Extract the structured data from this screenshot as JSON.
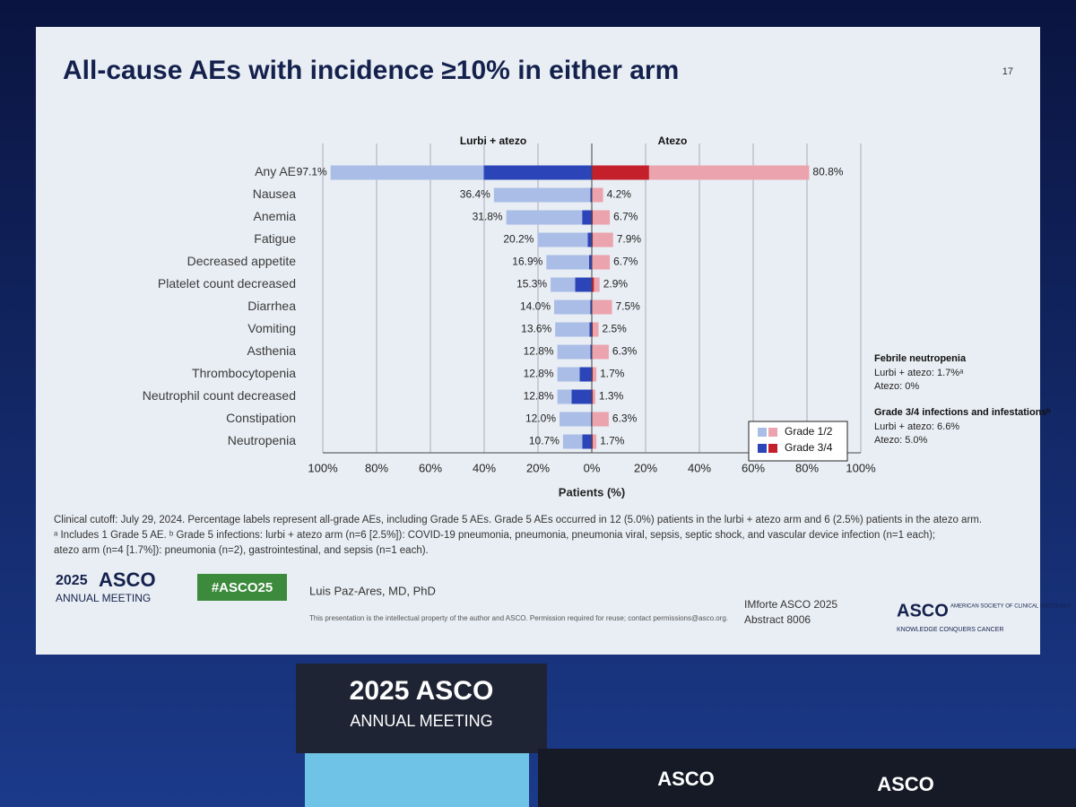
{
  "chart_data": {
    "type": "butterfly",
    "title": "All-cause AEs with incidence ≥10% in either arm",
    "slide_number": "17",
    "x_label": "Patients (%)",
    "categories": [
      "Any AE",
      "Nausea",
      "Anemia",
      "Fatigue",
      "Decreased appetite",
      "Platelet count decreased",
      "Diarrhea",
      "Vomiting",
      "Asthenia",
      "Thrombocytopenia",
      "Neutrophil count decreased",
      "Constipation",
      "Neutropenia"
    ],
    "series": [
      {
        "name": "Grade 1/2",
        "colors": [
          "#a9bde6",
          "#eba3ad"
        ]
      },
      {
        "name": "Grade 3/4",
        "colors": [
          "#2b45b8",
          "#c4202c"
        ]
      }
    ],
    "groups": [
      {
        "name": "Lurbi + atezo",
        "side": "left",
        "values": [
          [
            56.9,
            35.9,
            28.2,
            18.7,
            15.9,
            9.1,
            13.4,
            12.7,
            12.3,
            8.3,
            5.3,
            11.7,
            7.2
          ],
          [
            40.2,
            0.5,
            3.6,
            1.5,
            1.0,
            6.2,
            0.6,
            0.9,
            0.5,
            4.5,
            7.5,
            0.3,
            3.5
          ]
        ],
        "totals": [
          97.1,
          36.4,
          31.8,
          20.2,
          16.9,
          15.3,
          14.0,
          13.6,
          12.8,
          12.8,
          12.8,
          12.0,
          10.7
        ],
        "total_labels": [
          "97.1%",
          "36.4%",
          "31.8%",
          "20.2%",
          "16.9%",
          "15.3%",
          "14.0%",
          "13.6%",
          "12.8%",
          "12.8%",
          "12.8%",
          "12.0%",
          "10.7%"
        ],
        "xticks": [
          {
            "value": 100,
            "label": "100%"
          },
          {
            "value": 80,
            "label": "80%"
          },
          {
            "value": 60,
            "label": "60%"
          },
          {
            "value": 40,
            "label": "40%"
          },
          {
            "value": 20,
            "label": "20%"
          }
        ]
      },
      {
        "name": "Atezo",
        "side": "right",
        "values": [
          [
            59.5,
            4.2,
            6.3,
            7.5,
            6.7,
            2.1,
            7.5,
            2.1,
            6.3,
            1.3,
            0.9,
            6.3,
            1.3
          ],
          [
            21.3,
            0,
            0.4,
            0.4,
            0,
            0.8,
            0,
            0.4,
            0,
            0.4,
            0.4,
            0,
            0.4
          ]
        ],
        "totals": [
          80.8,
          4.2,
          6.7,
          7.9,
          6.7,
          2.9,
          7.5,
          2.5,
          6.3,
          1.7,
          1.3,
          6.3,
          1.7
        ],
        "total_labels": [
          "80.8%",
          "4.2%",
          "6.7%",
          "7.9%",
          "6.7%",
          "2.9%",
          "7.5%",
          "2.5%",
          "6.3%",
          "1.7%",
          "1.3%",
          "6.3%",
          "1.7%"
        ],
        "xticks": [
          {
            "value": 0,
            "label": "0%"
          },
          {
            "value": 20,
            "label": "20%"
          },
          {
            "value": 40,
            "label": "40%"
          },
          {
            "value": 60,
            "label": "60%"
          },
          {
            "value": 80,
            "label": "80%"
          },
          {
            "value": 100,
            "label": "100%"
          }
        ]
      }
    ],
    "xlim": [
      0,
      100
    ],
    "grid": true,
    "legend": "bottom-right",
    "notes": [
      {
        "heading": "Febrile neutropenia",
        "lines": [
          "Lurbi + atezo: 1.7%ᵃ",
          "Atezo: 0%"
        ]
      },
      {
        "heading": "Grade 3/4 infections and infestationsᵇ",
        "lines": [
          "Lurbi + atezo: 6.6%",
          "Atezo: 5.0%"
        ]
      }
    ]
  },
  "footnotes": [
    "Clinical cutoff: July 29, 2024. Percentage labels represent all-grade AEs, including Grade 5 AEs. Grade 5 AEs occurred in 12 (5.0%) patients in the lurbi + atezo arm and 6 (2.5%) patients in the atezo arm.",
    "ᵃ Includes 1 Grade 5 AE. ᵇ Grade 5 infections: lurbi + atezo arm (n=6 [2.5%]): COVID-19 pneumonia, pneumonia, pneumonia viral, sepsis, septic shock, and vascular device infection (n=1 each);",
    "atezo arm (n=4 [1.7%]): pneumonia (n=2), gastrointestinal, and sepsis (n=1 each)."
  ],
  "footer": {
    "meeting_year": "2025",
    "meeting_name": "ASCO",
    "meeting_sub": "ANNUAL MEETING",
    "hashtag": "#ASCO25",
    "presenter": "Luis Paz-Ares, MD, PhD",
    "disclaimer": "This presentation is the intellectual property of the author and ASCO. Permission required for reuse; contact permissions@asco.org.",
    "study": "IMforte ASCO 2025",
    "abstract": "Abstract 8006",
    "org": "ASCO",
    "org_full": "AMERICAN SOCIETY OF CLINICAL ONCOLOGY",
    "tagline": "KNOWLEDGE CONQUERS CANCER"
  },
  "stage": {
    "podium_top": "2025 ASCO",
    "podium_bottom": "ANNUAL MEETING",
    "desk_left": "ASCO",
    "desk_right": "ASCO"
  }
}
